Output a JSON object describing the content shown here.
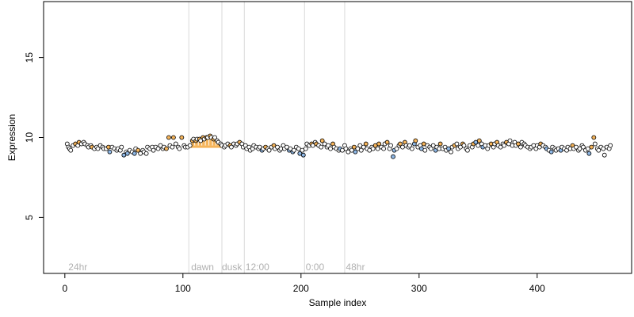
{
  "chart_data": {
    "type": "scatter",
    "xlabel": "Sample index",
    "ylabel": "Expression",
    "xlim": [
      -18,
      480
    ],
    "ylim": [
      1.5,
      18.5
    ],
    "xticks": [
      0,
      100,
      200,
      300,
      400
    ],
    "yticks": [
      5,
      10,
      15
    ],
    "vlines": [
      105,
      133,
      152,
      203,
      237
    ],
    "annotations": [
      {
        "text": "24hr",
        "x": 3
      },
      {
        "text": "dawn",
        "x": 107
      },
      {
        "text": "dusk",
        "x": 133
      },
      {
        "text": "12:00",
        "x": 153
      },
      {
        "text": "0:00",
        "x": 204
      },
      {
        "text": "48hr",
        "x": 238
      }
    ],
    "annotation_y": 1.9,
    "band": {
      "x_start": 106,
      "x_end": 133,
      "y": 9.5
    },
    "colors": {
      "point_fill": "#ffffff",
      "orange": "#f5b45a",
      "blue": "#8fb8e6",
      "stroke": "#000000",
      "band": "#f5b45a",
      "grid": "#d9d9d9",
      "annot": "#b0b0b0"
    },
    "points": [
      [
        2,
        9.6
      ],
      [
        3,
        9.4
      ],
      [
        4,
        9.3
      ],
      [
        5,
        9.2
      ],
      [
        7,
        9.5
      ],
      [
        9,
        9.6
      ],
      [
        11,
        9.5
      ],
      [
        12,
        9.7
      ],
      [
        14,
        9.6
      ],
      [
        16,
        9.7
      ],
      [
        17,
        9.6
      ],
      [
        19,
        9.5
      ],
      [
        20,
        9.4
      ],
      [
        22,
        9.5
      ],
      [
        23,
        9.4
      ],
      [
        25,
        9.3
      ],
      [
        27,
        9.4
      ],
      [
        28,
        9.3
      ],
      [
        30,
        9.5
      ],
      [
        32,
        9.4
      ],
      [
        33,
        9.3
      ],
      [
        35,
        9.3
      ],
      [
        37,
        9.4
      ],
      [
        38,
        9.1
      ],
      [
        40,
        9.4
      ],
      [
        42,
        9.3
      ],
      [
        44,
        9.2
      ],
      [
        45,
        9.3
      ],
      [
        47,
        9.2
      ],
      [
        48,
        9.4
      ],
      [
        50,
        8.9
      ],
      [
        52,
        9.1
      ],
      [
        53,
        9.0
      ],
      [
        55,
        9.2
      ],
      [
        57,
        9.1
      ],
      [
        59,
        9.0
      ],
      [
        60,
        9.3
      ],
      [
        62,
        9.2
      ],
      [
        64,
        9.0
      ],
      [
        66,
        9.2
      ],
      [
        67,
        9.1
      ],
      [
        69,
        9.0
      ],
      [
        70,
        9.4
      ],
      [
        72,
        9.3
      ],
      [
        74,
        9.4
      ],
      [
        75,
        9.2
      ],
      [
        77,
        9.4
      ],
      [
        79,
        9.3
      ],
      [
        81,
        9.5
      ],
      [
        83,
        9.3
      ],
      [
        84,
        9.4
      ],
      [
        86,
        9.3
      ],
      [
        88,
        10.0
      ],
      [
        89,
        9.5
      ],
      [
        91,
        9.4
      ],
      [
        92,
        10.0
      ],
      [
        94,
        9.6
      ],
      [
        96,
        9.4
      ],
      [
        97,
        9.3
      ],
      [
        99,
        10.0
      ],
      [
        101,
        9.5
      ],
      [
        102,
        9.4
      ],
      [
        104,
        9.4
      ],
      [
        106,
        9.5
      ],
      [
        108,
        9.8
      ],
      [
        109,
        9.9
      ],
      [
        111,
        9.8
      ],
      [
        112,
        9.9
      ],
      [
        114,
        9.9
      ],
      [
        115,
        9.8
      ],
      [
        117,
        10.0
      ],
      [
        118,
        9.9
      ],
      [
        120,
        10.0
      ],
      [
        121,
        10.0
      ],
      [
        123,
        10.1
      ],
      [
        124,
        10.0
      ],
      [
        126,
        9.9
      ],
      [
        127,
        10.0
      ],
      [
        129,
        9.8
      ],
      [
        130,
        9.7
      ],
      [
        132,
        9.6
      ],
      [
        133,
        9.5
      ],
      [
        135,
        9.4
      ],
      [
        136,
        9.5
      ],
      [
        138,
        9.6
      ],
      [
        140,
        9.5
      ],
      [
        141,
        9.4
      ],
      [
        143,
        9.6
      ],
      [
        145,
        9.5
      ],
      [
        146,
        9.6
      ],
      [
        148,
        9.7
      ],
      [
        150,
        9.6
      ],
      [
        151,
        9.4
      ],
      [
        153,
        9.5
      ],
      [
        154,
        9.3
      ],
      [
        156,
        9.4
      ],
      [
        157,
        9.2
      ],
      [
        159,
        9.3
      ],
      [
        160,
        9.5
      ],
      [
        162,
        9.4
      ],
      [
        164,
        9.3
      ],
      [
        165,
        9.4
      ],
      [
        167,
        9.2
      ],
      [
        168,
        9.3
      ],
      [
        170,
        9.4
      ],
      [
        172,
        9.3
      ],
      [
        173,
        9.2
      ],
      [
        175,
        9.4
      ],
      [
        177,
        9.5
      ],
      [
        178,
        9.3
      ],
      [
        180,
        9.4
      ],
      [
        182,
        9.2
      ],
      [
        183,
        9.3
      ],
      [
        185,
        9.5
      ],
      [
        186,
        9.3
      ],
      [
        188,
        9.4
      ],
      [
        190,
        9.2
      ],
      [
        191,
        9.3
      ],
      [
        193,
        9.1
      ],
      [
        194,
        9.2
      ],
      [
        196,
        9.4
      ],
      [
        198,
        9.3
      ],
      [
        199,
        9.0
      ],
      [
        201,
        9.2
      ],
      [
        202,
        8.9
      ],
      [
        204,
        9.3
      ],
      [
        205,
        9.6
      ],
      [
        207,
        9.5
      ],
      [
        209,
        9.6
      ],
      [
        210,
        9.5
      ],
      [
        212,
        9.7
      ],
      [
        213,
        9.6
      ],
      [
        215,
        9.5
      ],
      [
        217,
        9.4
      ],
      [
        218,
        9.8
      ],
      [
        220,
        9.6
      ],
      [
        222,
        9.4
      ],
      [
        223,
        9.5
      ],
      [
        225,
        9.3
      ],
      [
        227,
        9.6
      ],
      [
        228,
        9.4
      ],
      [
        230,
        9.3
      ],
      [
        232,
        9.2
      ],
      [
        233,
        9.3
      ],
      [
        235,
        9.2
      ],
      [
        237,
        9.5
      ],
      [
        238,
        9.3
      ],
      [
        240,
        9.1
      ],
      [
        242,
        9.3
      ],
      [
        243,
        9.2
      ],
      [
        245,
        9.4
      ],
      [
        246,
        9.1
      ],
      [
        248,
        9.3
      ],
      [
        250,
        9.5
      ],
      [
        251,
        9.2
      ],
      [
        253,
        9.4
      ],
      [
        255,
        9.6
      ],
      [
        256,
        9.3
      ],
      [
        258,
        9.2
      ],
      [
        260,
        9.4
      ],
      [
        261,
        9.3
      ],
      [
        263,
        9.5
      ],
      [
        265,
        9.3
      ],
      [
        266,
        9.6
      ],
      [
        268,
        9.4
      ],
      [
        270,
        9.3
      ],
      [
        271,
        9.6
      ],
      [
        273,
        9.7
      ],
      [
        275,
        9.3
      ],
      [
        276,
        9.5
      ],
      [
        278,
        8.8
      ],
      [
        279,
        9.2
      ],
      [
        281,
        9.3
      ],
      [
        283,
        9.5
      ],
      [
        284,
        9.6
      ],
      [
        286,
        9.4
      ],
      [
        288,
        9.7
      ],
      [
        289,
        9.5
      ],
      [
        291,
        9.4
      ],
      [
        292,
        9.5
      ],
      [
        294,
        9.3
      ],
      [
        296,
        9.6
      ],
      [
        297,
        9.8
      ],
      [
        299,
        9.4
      ],
      [
        301,
        9.5
      ],
      [
        302,
        9.3
      ],
      [
        304,
        9.6
      ],
      [
        305,
        9.2
      ],
      [
        307,
        9.5
      ],
      [
        309,
        9.4
      ],
      [
        310,
        9.3
      ],
      [
        312,
        9.5
      ],
      [
        314,
        9.2
      ],
      [
        315,
        9.4
      ],
      [
        317,
        9.3
      ],
      [
        318,
        9.6
      ],
      [
        320,
        9.3
      ],
      [
        322,
        9.4
      ],
      [
        323,
        9.2
      ],
      [
        325,
        9.3
      ],
      [
        327,
        9.1
      ],
      [
        328,
        9.4
      ],
      [
        330,
        9.5
      ],
      [
        332,
        9.6
      ],
      [
        333,
        9.3
      ],
      [
        335,
        9.4
      ],
      [
        337,
        9.6
      ],
      [
        338,
        9.5
      ],
      [
        340,
        9.3
      ],
      [
        341,
        9.2
      ],
      [
        343,
        9.5
      ],
      [
        345,
        9.4
      ],
      [
        346,
        9.6
      ],
      [
        348,
        9.7
      ],
      [
        350,
        9.5
      ],
      [
        351,
        9.8
      ],
      [
        353,
        9.6
      ],
      [
        354,
        9.4
      ],
      [
        356,
        9.5
      ],
      [
        358,
        9.3
      ],
      [
        359,
        9.5
      ],
      [
        361,
        9.6
      ],
      [
        363,
        9.4
      ],
      [
        364,
        9.6
      ],
      [
        366,
        9.7
      ],
      [
        367,
        9.5
      ],
      [
        369,
        9.4
      ],
      [
        371,
        9.6
      ],
      [
        372,
        9.5
      ],
      [
        374,
        9.7
      ],
      [
        376,
        9.6
      ],
      [
        377,
        9.8
      ],
      [
        379,
        9.5
      ],
      [
        381,
        9.7
      ],
      [
        382,
        9.5
      ],
      [
        384,
        9.6
      ],
      [
        386,
        9.4
      ],
      [
        387,
        9.7
      ],
      [
        389,
        9.6
      ],
      [
        390,
        9.5
      ],
      [
        392,
        9.4
      ],
      [
        394,
        9.3
      ],
      [
        395,
        9.4
      ],
      [
        397,
        9.5
      ],
      [
        399,
        9.3
      ],
      [
        400,
        9.5
      ],
      [
        402,
        9.4
      ],
      [
        403,
        9.6
      ],
      [
        405,
        9.5
      ],
      [
        407,
        9.4
      ],
      [
        408,
        9.3
      ],
      [
        410,
        9.2
      ],
      [
        412,
        9.1
      ],
      [
        413,
        9.4
      ],
      [
        415,
        9.3
      ],
      [
        416,
        9.2
      ],
      [
        418,
        9.3
      ],
      [
        420,
        9.2
      ],
      [
        421,
        9.4
      ],
      [
        423,
        9.3
      ],
      [
        425,
        9.2
      ],
      [
        426,
        9.4
      ],
      [
        428,
        9.3
      ],
      [
        430,
        9.5
      ],
      [
        431,
        9.3
      ],
      [
        433,
        9.4
      ],
      [
        435,
        9.2
      ],
      [
        436,
        9.3
      ],
      [
        438,
        9.5
      ],
      [
        439,
        9.4
      ],
      [
        441,
        9.2
      ],
      [
        443,
        9.3
      ],
      [
        444,
        9.0
      ],
      [
        446,
        9.4
      ],
      [
        448,
        10.0
      ],
      [
        449,
        9.6
      ],
      [
        451,
        9.3
      ],
      [
        452,
        9.2
      ],
      [
        454,
        9.4
      ],
      [
        456,
        9.3
      ],
      [
        457,
        8.9
      ],
      [
        459,
        9.4
      ],
      [
        461,
        9.3
      ],
      [
        462,
        9.5
      ]
    ],
    "orange_x": [
      9,
      12,
      23,
      37,
      62,
      86,
      88,
      92,
      99,
      108,
      111,
      114,
      117,
      120,
      123,
      126,
      140,
      148,
      170,
      177,
      209,
      213,
      218,
      227,
      245,
      255,
      263,
      266,
      273,
      284,
      288,
      297,
      304,
      318,
      330,
      337,
      346,
      351,
      361,
      366,
      374,
      384,
      403,
      430,
      446,
      448
    ],
    "blue_x": [
      38,
      50,
      53,
      59,
      117,
      167,
      190,
      193,
      199,
      202,
      233,
      246,
      278,
      279,
      296,
      302,
      314,
      325,
      348,
      354,
      408,
      412,
      420,
      444
    ],
    "band_x": [
      106,
      108,
      109,
      111,
      112,
      114,
      115,
      117,
      118,
      120,
      121,
      123,
      124,
      126,
      127,
      129,
      130,
      132,
      133
    ]
  }
}
